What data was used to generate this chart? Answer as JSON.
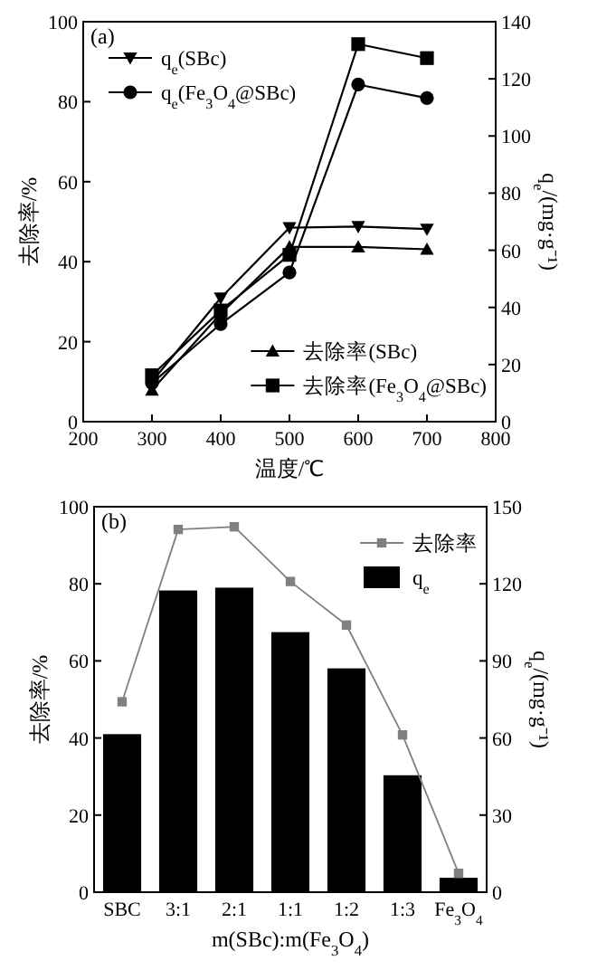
{
  "chart_data": [
    {
      "type": "line",
      "title": "(a)",
      "xlabel": "温度/℃",
      "ylabel": "去除率/%",
      "y2label": "q$_{e}$/(mg·g⁻¹)",
      "x": [
        300,
        400,
        500,
        600,
        700
      ],
      "xlim": [
        200,
        800
      ],
      "xticks": [
        200,
        300,
        400,
        500,
        600,
        700,
        800
      ],
      "ylim": [
        0,
        100
      ],
      "yticks": [
        0,
        20,
        40,
        60,
        80,
        100
      ],
      "y2lim": [
        0,
        140
      ],
      "y2ticks": [
        0,
        20,
        40,
        60,
        80,
        100,
        120,
        140
      ],
      "legend": [
        "top left",
        "bottom right"
      ],
      "series": [
        {
          "name": "q$_{e}$(SBc)",
          "color": "#000000",
          "axis": "y2",
          "marker": "triangle_down",
          "values": [
            14,
            43.3,
            67.9,
            68.3,
            67.4
          ]
        },
        {
          "name": "q$_{e}$(Fe$_{3}$O$_{4}$@SBc)",
          "color": "#000000",
          "axis": "y2",
          "marker": "circle",
          "values": [
            13.5,
            34.2,
            52.2,
            118,
            113.3
          ]
        },
        {
          "name": "去除率(SBc)",
          "color": "#000000",
          "axis": "y",
          "marker": "triangle",
          "values": [
            7.9,
            27,
            43.7,
            43.7,
            43.1
          ]
        },
        {
          "name": "去除率(Fe$_{3}$O$_{4}$@SBc)",
          "color": "#000000",
          "axis": "y",
          "marker": "square",
          "values": [
            11.6,
            27.8,
            41.7,
            94.4,
            90.9
          ]
        }
      ]
    },
    {
      "type": "bar",
      "title": "(b)",
      "xlabel": "m(SBc):m(Fe$_{3}$O$_{4}$)",
      "ylabel": "去除率/%",
      "y2label": "q$_{e}$/(mg·g⁻¹)",
      "categories": [
        "SBC",
        "3:1",
        "2:1",
        "1:1",
        "1:2",
        "1:3",
        "Fe$_{3}$O$_{4}$"
      ],
      "ylim": [
        0,
        100
      ],
      "yticks": [
        0,
        20,
        40,
        60,
        80,
        100
      ],
      "y2lim": [
        0,
        150
      ],
      "y2ticks": [
        0,
        30,
        60,
        90,
        120,
        150
      ],
      "legend": [
        "top right"
      ],
      "series": [
        {
          "name": "去除率",
          "type": "line",
          "color": "#808080",
          "axis": "y",
          "marker": "square",
          "values": [
            49.4,
            94.1,
            94.8,
            80.6,
            69.3,
            40.8,
            4.9
          ]
        },
        {
          "name": "q$_{e}$",
          "color": "#000000",
          "axis": "y2",
          "values": [
            61.5,
            117.4,
            118.5,
            101.2,
            87.1,
            45.5,
            5.6
          ]
        }
      ]
    }
  ]
}
